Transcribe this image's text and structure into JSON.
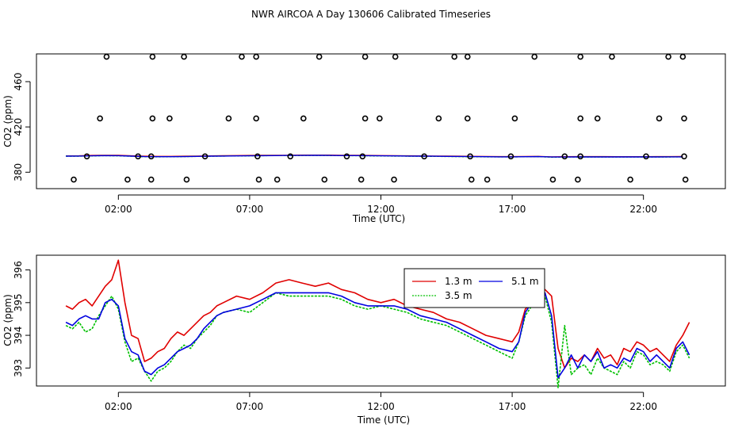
{
  "title": "NWR AIRCOA A  Day 130606  Calibrated Timeseries",
  "chart_data": [
    {
      "type": "scatter",
      "title": "NWR AIRCOA A  Day 130606  Calibrated Timeseries",
      "xlabel": "Time (UTC)",
      "ylabel": "CO2 (ppm)",
      "xlim": [
        -1.12,
        25.12
      ],
      "ylim": [
        365.5,
        484.5
      ],
      "xticks": [
        2,
        7,
        12,
        17,
        22
      ],
      "xtick_labels": [
        "02:00",
        "07:00",
        "12:00",
        "17:00",
        "22:00"
      ],
      "yticks": [
        380,
        420,
        460
      ],
      "ytick_labels": [
        "380",
        "420",
        "460"
      ],
      "points": [
        {
          "x": 1.55,
          "y": 482
        },
        {
          "x": 3.3,
          "y": 482
        },
        {
          "x": 4.5,
          "y": 482
        },
        {
          "x": 6.7,
          "y": 482
        },
        {
          "x": 7.25,
          "y": 482
        },
        {
          "x": 9.65,
          "y": 482
        },
        {
          "x": 11.4,
          "y": 482
        },
        {
          "x": 12.55,
          "y": 482
        },
        {
          "x": 14.8,
          "y": 482
        },
        {
          "x": 15.3,
          "y": 482
        },
        {
          "x": 17.85,
          "y": 482
        },
        {
          "x": 19.6,
          "y": 482
        },
        {
          "x": 20.8,
          "y": 482
        },
        {
          "x": 22.95,
          "y": 482
        },
        {
          "x": 23.5,
          "y": 482
        },
        {
          "x": 1.3,
          "y": 427.5
        },
        {
          "x": 3.3,
          "y": 427.5
        },
        {
          "x": 3.95,
          "y": 427.5
        },
        {
          "x": 6.2,
          "y": 427.5
        },
        {
          "x": 7.25,
          "y": 427.5
        },
        {
          "x": 9.05,
          "y": 427.5
        },
        {
          "x": 11.4,
          "y": 427.5
        },
        {
          "x": 11.95,
          "y": 427.5
        },
        {
          "x": 14.2,
          "y": 427.5
        },
        {
          "x": 15.3,
          "y": 427.5
        },
        {
          "x": 17.1,
          "y": 427.5
        },
        {
          "x": 19.6,
          "y": 427.5
        },
        {
          "x": 20.25,
          "y": 427.5
        },
        {
          "x": 22.6,
          "y": 427.5
        },
        {
          "x": 23.55,
          "y": 427.5
        },
        {
          "x": 0.8,
          "y": 394
        },
        {
          "x": 2.75,
          "y": 394
        },
        {
          "x": 3.25,
          "y": 394
        },
        {
          "x": 5.3,
          "y": 394
        },
        {
          "x": 7.3,
          "y": 394
        },
        {
          "x": 8.55,
          "y": 394
        },
        {
          "x": 10.7,
          "y": 394
        },
        {
          "x": 11.3,
          "y": 394
        },
        {
          "x": 13.65,
          "y": 394
        },
        {
          "x": 15.4,
          "y": 394
        },
        {
          "x": 16.95,
          "y": 394
        },
        {
          "x": 19.0,
          "y": 394
        },
        {
          "x": 19.6,
          "y": 394
        },
        {
          "x": 22.1,
          "y": 394
        },
        {
          "x": 23.55,
          "y": 394
        },
        {
          "x": 0.3,
          "y": 373.5
        },
        {
          "x": 2.35,
          "y": 373.5
        },
        {
          "x": 3.25,
          "y": 373.5
        },
        {
          "x": 4.6,
          "y": 373.5
        },
        {
          "x": 7.35,
          "y": 373.5
        },
        {
          "x": 8.05,
          "y": 373.5
        },
        {
          "x": 9.85,
          "y": 373.5
        },
        {
          "x": 11.25,
          "y": 373.5
        },
        {
          "x": 12.5,
          "y": 373.5
        },
        {
          "x": 15.45,
          "y": 373.5
        },
        {
          "x": 16.05,
          "y": 373.5
        },
        {
          "x": 18.55,
          "y": 373.5
        },
        {
          "x": 19.5,
          "y": 373.5
        },
        {
          "x": 21.5,
          "y": 373.5
        },
        {
          "x": 23.6,
          "y": 373.5
        }
      ],
      "series": [
        {
          "name": "1.3 m",
          "color": "#e00000",
          "x": [
            0,
            0.5,
            1,
            1.5,
            2,
            2.5,
            3,
            3.5,
            4,
            4.5,
            5,
            5.5,
            6,
            6.5,
            7,
            7.5,
            8,
            8.5,
            9,
            9.5,
            10,
            10.5,
            11,
            11.5,
            12,
            12.5,
            13,
            13.5,
            14,
            14.5,
            15,
            15.5,
            16,
            16.5,
            17,
            17.5,
            18,
            18.5,
            19,
            19.5,
            20,
            20.5,
            21,
            21.5,
            22,
            22.5,
            23,
            23.5
          ],
          "y": [
            394.4,
            394.5,
            394.8,
            395.0,
            394.9,
            394.5,
            394.1,
            394.0,
            394.0,
            394.1,
            394.3,
            394.4,
            394.6,
            394.7,
            394.8,
            394.9,
            395.0,
            395.0,
            395.1,
            395.1,
            395.1,
            395.0,
            394.9,
            394.8,
            394.7,
            394.6,
            394.5,
            394.4,
            394.3,
            394.2,
            394.1,
            394.0,
            393.9,
            393.8,
            393.8,
            393.9,
            394.0,
            393.6,
            393.7,
            393.8,
            393.8,
            393.8,
            393.7,
            393.7,
            393.7,
            393.8,
            393.8,
            393.9
          ]
        },
        {
          "name": "3.5 m",
          "color": "#00c000",
          "x": [
            0,
            0.5,
            1,
            1.5,
            2,
            2.5,
            3,
            3.5,
            4,
            4.5,
            5,
            5.5,
            6,
            6.5,
            7,
            7.5,
            8,
            8.5,
            9,
            9.5,
            10,
            10.5,
            11,
            11.5,
            12,
            12.5,
            13,
            13.5,
            14,
            14.5,
            15,
            15.5,
            16,
            16.5,
            17,
            17.5,
            18,
            18.5,
            19,
            19.5,
            20,
            20.5,
            21,
            21.5,
            22,
            22.5,
            23,
            23.5
          ],
          "y": [
            394.2,
            394.2,
            394.4,
            394.6,
            394.5,
            394.1,
            393.7,
            393.6,
            393.7,
            393.8,
            394.0,
            394.1,
            394.3,
            394.4,
            394.5,
            394.6,
            394.7,
            394.7,
            394.8,
            394.8,
            394.8,
            394.7,
            394.6,
            394.5,
            394.4,
            394.3,
            394.2,
            394.1,
            394.0,
            393.9,
            393.8,
            393.7,
            393.6,
            393.6,
            393.5,
            393.7,
            393.8,
            393.3,
            393.4,
            393.5,
            393.5,
            393.5,
            393.4,
            393.4,
            393.5,
            393.5,
            393.5,
            393.6
          ]
        },
        {
          "name": "5.1 m",
          "color": "#0000e0",
          "x": [
            0,
            0.5,
            1,
            1.5,
            2,
            2.5,
            3,
            3.5,
            4,
            4.5,
            5,
            5.5,
            6,
            6.5,
            7,
            7.5,
            8,
            8.5,
            9,
            9.5,
            10,
            10.5,
            11,
            11.5,
            12,
            12.5,
            13,
            13.5,
            14,
            14.5,
            15,
            15.5,
            16,
            16.5,
            17,
            17.5,
            18,
            18.5,
            19,
            19.5,
            20,
            20.5,
            21,
            21.5,
            22,
            22.5,
            23,
            23.5
          ],
          "y": [
            394.2,
            394.3,
            394.5,
            394.7,
            394.6,
            394.2,
            393.8,
            393.7,
            393.7,
            393.8,
            394.0,
            394.2,
            394.3,
            394.4,
            394.5,
            394.6,
            394.7,
            394.8,
            394.8,
            394.9,
            394.8,
            394.7,
            394.7,
            394.6,
            394.5,
            394.4,
            394.3,
            394.2,
            394.1,
            394.0,
            393.9,
            393.8,
            393.7,
            393.6,
            393.6,
            393.7,
            393.8,
            393.4,
            393.4,
            393.5,
            393.5,
            393.5,
            393.5,
            393.5,
            393.5,
            393.5,
            393.6,
            393.6
          ]
        }
      ]
    },
    {
      "type": "line",
      "xlabel": "Time (UTC)",
      "ylabel": "CO2 (ppm)",
      "xlim": [
        -1.12,
        25.12
      ],
      "ylim": [
        392.45,
        396.45
      ],
      "xticks": [
        2,
        7,
        12,
        17,
        22
      ],
      "xtick_labels": [
        "02:00",
        "07:00",
        "12:00",
        "17:00",
        "22:00"
      ],
      "yticks": [
        393,
        394,
        395,
        396
      ],
      "ytick_labels": [
        "393",
        "394",
        "395",
        "396"
      ],
      "legend_position": "top-right",
      "series": [
        {
          "name": "1.3 m",
          "color": "#e00000",
          "x": [
            0,
            0.25,
            0.5,
            0.75,
            1,
            1.25,
            1.5,
            1.75,
            2,
            2.25,
            2.5,
            2.75,
            3,
            3.25,
            3.5,
            3.75,
            4,
            4.25,
            4.5,
            4.75,
            5,
            5.25,
            5.5,
            5.75,
            6,
            6.5,
            7,
            7.5,
            8,
            8.5,
            9,
            9.5,
            10,
            10.5,
            11,
            11.5,
            12,
            12.5,
            13,
            13.5,
            14,
            14.5,
            15,
            15.5,
            16,
            16.5,
            17,
            17.25,
            17.5,
            17.75,
            18,
            18.25,
            18.5,
            18.75,
            19,
            19.25,
            19.5,
            19.75,
            20,
            20.25,
            20.5,
            20.75,
            21,
            21.25,
            21.5,
            21.75,
            22,
            22.25,
            22.5,
            22.75,
            23,
            23.25,
            23.5,
            23.75
          ],
          "y": [
            394.9,
            394.8,
            395.0,
            395.1,
            394.9,
            395.2,
            395.5,
            395.7,
            396.3,
            395.0,
            394.0,
            393.9,
            393.2,
            393.3,
            393.5,
            393.6,
            393.9,
            394.1,
            394.0,
            394.2,
            394.4,
            394.6,
            394.7,
            394.9,
            395.0,
            395.2,
            395.1,
            395.3,
            395.6,
            395.7,
            395.6,
            395.5,
            395.6,
            395.4,
            395.3,
            395.1,
            395.0,
            395.1,
            394.9,
            394.8,
            394.7,
            394.5,
            394.4,
            394.2,
            394.0,
            393.9,
            393.8,
            394.1,
            394.8,
            395.0,
            395.3,
            395.4,
            395.2,
            393.6,
            393.0,
            393.3,
            393.2,
            393.4,
            393.2,
            393.6,
            393.3,
            393.4,
            393.1,
            393.6,
            393.5,
            393.8,
            393.7,
            393.5,
            393.6,
            393.4,
            393.2,
            393.7,
            394.0,
            394.4
          ]
        },
        {
          "name": "3.5 m",
          "color": "#00c000",
          "x": [
            0,
            0.25,
            0.5,
            0.75,
            1,
            1.25,
            1.5,
            1.75,
            2,
            2.25,
            2.5,
            2.75,
            3,
            3.25,
            3.5,
            3.75,
            4,
            4.25,
            4.5,
            4.75,
            5,
            5.25,
            5.5,
            5.75,
            6,
            6.5,
            7,
            7.5,
            8,
            8.5,
            9,
            9.5,
            10,
            10.5,
            11,
            11.5,
            12,
            12.5,
            13,
            13.5,
            14,
            14.5,
            15,
            15.5,
            16,
            16.5,
            17,
            17.25,
            17.5,
            17.75,
            18,
            18.25,
            18.5,
            18.75,
            19,
            19.25,
            19.5,
            19.75,
            20,
            20.25,
            20.5,
            20.75,
            21,
            21.25,
            21.5,
            21.75,
            22,
            22.25,
            22.5,
            22.75,
            23,
            23.25,
            23.5,
            23.75
          ],
          "y": [
            394.3,
            394.2,
            394.4,
            394.1,
            394.2,
            394.6,
            394.9,
            395.2,
            394.8,
            393.8,
            393.2,
            393.3,
            392.9,
            392.6,
            392.9,
            393.0,
            393.2,
            393.5,
            393.7,
            393.6,
            393.9,
            394.1,
            394.3,
            394.6,
            394.7,
            394.8,
            394.7,
            395.0,
            395.3,
            395.2,
            395.2,
            395.2,
            395.2,
            395.1,
            394.9,
            394.8,
            394.9,
            394.8,
            394.7,
            394.5,
            394.4,
            394.3,
            394.1,
            393.9,
            393.7,
            393.5,
            393.3,
            393.8,
            394.6,
            394.9,
            395.1,
            395.2,
            394.4,
            392.4,
            394.3,
            392.8,
            393.0,
            393.1,
            392.8,
            393.3,
            393.0,
            392.9,
            392.8,
            393.2,
            393.0,
            393.5,
            393.4,
            393.1,
            393.2,
            393.1,
            392.9,
            393.5,
            393.7,
            393.3
          ]
        },
        {
          "name": "5.1 m",
          "color": "#0000e0",
          "x": [
            0,
            0.25,
            0.5,
            0.75,
            1,
            1.25,
            1.5,
            1.75,
            2,
            2.25,
            2.5,
            2.75,
            3,
            3.25,
            3.5,
            3.75,
            4,
            4.25,
            4.5,
            4.75,
            5,
            5.25,
            5.5,
            5.75,
            6,
            6.5,
            7,
            7.5,
            8,
            8.5,
            9,
            9.5,
            10,
            10.5,
            11,
            11.5,
            12,
            12.5,
            13,
            13.5,
            14,
            14.5,
            15,
            15.5,
            16,
            16.5,
            17,
            17.25,
            17.5,
            17.75,
            18,
            18.25,
            18.5,
            18.75,
            19,
            19.25,
            19.5,
            19.75,
            20,
            20.25,
            20.5,
            20.75,
            21,
            21.25,
            21.5,
            21.75,
            22,
            22.25,
            22.5,
            22.75,
            23,
            23.25,
            23.5,
            23.75
          ],
          "y": [
            394.4,
            394.3,
            394.5,
            394.6,
            394.5,
            394.5,
            395.0,
            395.1,
            394.9,
            393.9,
            393.5,
            393.4,
            392.9,
            392.8,
            393.0,
            393.1,
            393.3,
            393.5,
            393.6,
            393.7,
            393.9,
            394.2,
            394.4,
            394.6,
            394.7,
            394.8,
            394.9,
            395.1,
            395.3,
            395.3,
            395.3,
            395.3,
            395.3,
            395.2,
            395.0,
            394.9,
            394.9,
            394.9,
            394.8,
            394.6,
            394.5,
            394.4,
            394.2,
            394.0,
            393.8,
            393.6,
            393.5,
            393.8,
            394.7,
            395.0,
            395.2,
            395.3,
            394.6,
            392.7,
            393.0,
            393.4,
            393.0,
            393.4,
            393.2,
            393.5,
            393.0,
            393.1,
            393.0,
            393.3,
            393.2,
            393.6,
            393.5,
            393.2,
            393.4,
            393.2,
            393.0,
            393.6,
            393.8,
            393.4
          ]
        }
      ]
    }
  ]
}
